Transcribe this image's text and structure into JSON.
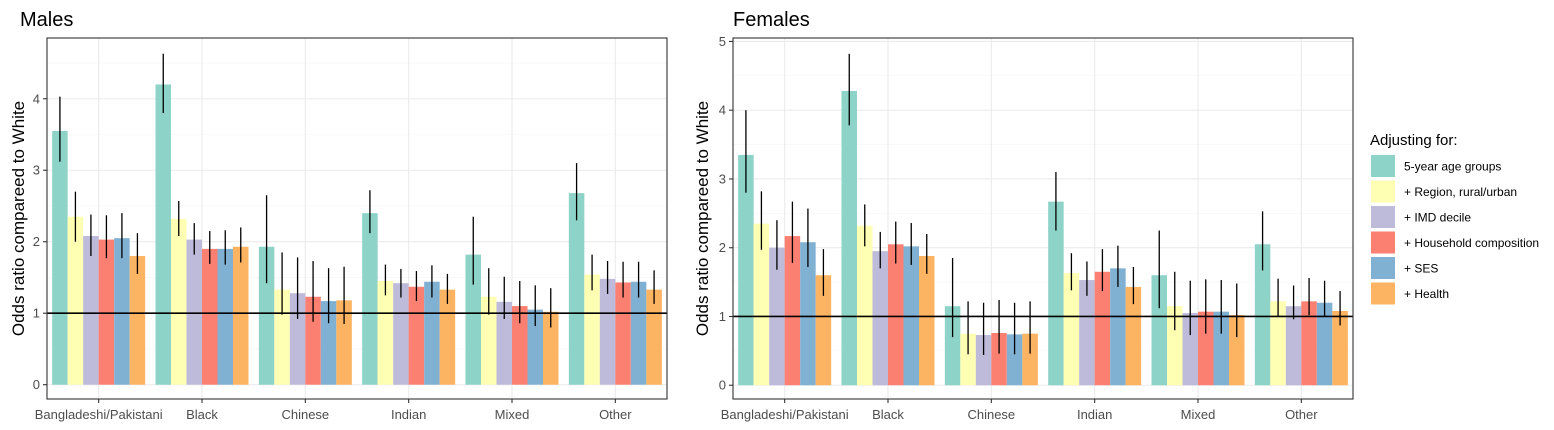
{
  "legend": {
    "title": "Adjusting for:",
    "items": [
      {
        "label": "5-year age groups",
        "color": "#8dd3c7"
      },
      {
        "label": "+ Region, rural/urban",
        "color": "#ffffb3"
      },
      {
        "label": "+ IMD decile",
        "color": "#bebada"
      },
      {
        "label": "+ Household composition",
        "color": "#fb8072"
      },
      {
        "label": "+ SES",
        "color": "#80b1d3"
      },
      {
        "label": "+ Health",
        "color": "#fdb462"
      }
    ]
  },
  "chart_data": [
    {
      "type": "bar",
      "title": "Males",
      "xlabel": "",
      "ylabel": "Odds ratio compareed to White",
      "ylim": [
        -0.2,
        4.85
      ],
      "yticks": [
        0,
        1,
        2,
        3,
        4
      ],
      "reference_line": 1,
      "grid": true,
      "categories": [
        "Bangladeshi/Pakistani",
        "Black",
        "Chinese",
        "Indian",
        "Mixed",
        "Other"
      ],
      "series": [
        {
          "name": "5-year age groups",
          "values": [
            3.55,
            4.2,
            1.93,
            2.4,
            1.82,
            2.68
          ],
          "lower": [
            3.12,
            3.8,
            1.42,
            2.12,
            1.4,
            2.3
          ],
          "upper": [
            4.03,
            4.63,
            2.65,
            2.72,
            2.35,
            3.1
          ]
        },
        {
          "name": "+ Region, rural/urban",
          "values": [
            2.35,
            2.32,
            1.33,
            1.45,
            1.23,
            1.54
          ],
          "lower": [
            2.0,
            2.08,
            0.98,
            1.25,
            0.98,
            1.32
          ],
          "upper": [
            2.7,
            2.57,
            1.85,
            1.68,
            1.63,
            1.82
          ]
        },
        {
          "name": "+ IMD decile",
          "values": [
            2.08,
            2.03,
            1.28,
            1.42,
            1.16,
            1.48
          ],
          "lower": [
            1.8,
            1.82,
            0.92,
            1.22,
            0.92,
            1.27
          ],
          "upper": [
            2.38,
            2.26,
            1.78,
            1.62,
            1.51,
            1.73
          ]
        },
        {
          "name": "+ Household composition",
          "values": [
            2.03,
            1.9,
            1.23,
            1.37,
            1.1,
            1.43
          ],
          "lower": [
            1.77,
            1.69,
            0.88,
            1.17,
            0.86,
            1.22
          ],
          "upper": [
            2.37,
            2.15,
            1.73,
            1.59,
            1.45,
            1.72
          ]
        },
        {
          "name": "+ SES",
          "values": [
            2.05,
            1.9,
            1.17,
            1.44,
            1.05,
            1.44
          ],
          "lower": [
            1.77,
            1.68,
            0.86,
            1.22,
            0.82,
            1.22
          ],
          "upper": [
            2.4,
            2.16,
            1.63,
            1.67,
            1.39,
            1.72
          ]
        },
        {
          "name": "+ Health",
          "values": [
            1.8,
            1.93,
            1.18,
            1.33,
            1.02,
            1.33
          ],
          "lower": [
            1.55,
            1.71,
            0.85,
            1.13,
            0.8,
            1.13
          ],
          "upper": [
            2.12,
            2.2,
            1.65,
            1.55,
            1.35,
            1.6
          ]
        }
      ]
    },
    {
      "type": "bar",
      "title": "Females",
      "xlabel": "",
      "ylabel": "Odds ratio compareed to White",
      "ylim": [
        -0.2,
        5.05
      ],
      "yticks": [
        0,
        1,
        2,
        3,
        4,
        5
      ],
      "reference_line": 1,
      "grid": true,
      "categories": [
        "Bangladeshi/Pakistani",
        "Black",
        "Chinese",
        "Indian",
        "Mixed",
        "Other"
      ],
      "series": [
        {
          "name": "5-year age groups",
          "values": [
            3.35,
            4.28,
            1.15,
            2.67,
            1.6,
            2.05
          ],
          "lower": [
            2.8,
            3.78,
            0.7,
            2.25,
            1.12,
            1.67
          ],
          "upper": [
            4.0,
            4.82,
            1.85,
            3.1,
            2.25,
            2.53
          ]
        },
        {
          "name": "+ Region, rural/urban",
          "values": [
            2.35,
            2.32,
            0.75,
            1.63,
            1.15,
            1.22
          ],
          "lower": [
            1.97,
            2.02,
            0.45,
            1.38,
            0.8,
            1.0
          ],
          "upper": [
            2.82,
            2.63,
            1.22,
            1.92,
            1.65,
            1.55
          ]
        },
        {
          "name": "+ IMD decile",
          "values": [
            2.0,
            1.95,
            0.73,
            1.53,
            1.05,
            1.15
          ],
          "lower": [
            1.68,
            1.7,
            0.44,
            1.3,
            0.73,
            0.96
          ],
          "upper": [
            2.4,
            2.23,
            1.2,
            1.8,
            1.52,
            1.45
          ]
        },
        {
          "name": "+ Household composition",
          "values": [
            2.17,
            2.05,
            0.76,
            1.65,
            1.07,
            1.22
          ],
          "lower": [
            1.78,
            1.77,
            0.46,
            1.37,
            0.75,
            1.02
          ],
          "upper": [
            2.67,
            2.38,
            1.24,
            1.98,
            1.54,
            1.56
          ]
        },
        {
          "name": "+ SES",
          "values": [
            2.08,
            2.02,
            0.74,
            1.7,
            1.07,
            1.2
          ],
          "lower": [
            1.72,
            1.75,
            0.45,
            1.43,
            0.75,
            1.0
          ],
          "upper": [
            2.57,
            2.36,
            1.2,
            2.03,
            1.53,
            1.52
          ]
        },
        {
          "name": "+ Health",
          "values": [
            1.6,
            1.88,
            0.75,
            1.43,
            1.02,
            1.08
          ],
          "lower": [
            1.3,
            1.62,
            0.46,
            1.18,
            0.7,
            0.87
          ],
          "upper": [
            1.98,
            2.2,
            1.22,
            1.72,
            1.48,
            1.37
          ]
        }
      ]
    }
  ]
}
